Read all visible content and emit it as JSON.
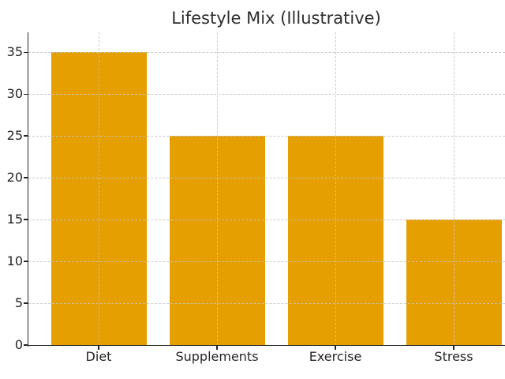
{
  "chart_data": {
    "type": "bar",
    "title": "Lifestyle Mix (Illustrative)",
    "categories": [
      "Diet",
      "Supplements",
      "Exercise",
      "Stress"
    ],
    "values": [
      35,
      25,
      25,
      15
    ],
    "xlabel": "",
    "ylabel": "",
    "yticks": [
      0,
      5,
      10,
      15,
      20,
      25,
      30,
      35
    ],
    "ylim": [
      0,
      37.4
    ],
    "grid": true,
    "grid_style": "dashed",
    "grid_over_bars": true,
    "legend": "none",
    "colors": {
      "bar": "#E69F00",
      "grid": "#c9c9c9",
      "axis": "#262626",
      "text": "#2d2d2d",
      "background": "#ffffff"
    }
  }
}
